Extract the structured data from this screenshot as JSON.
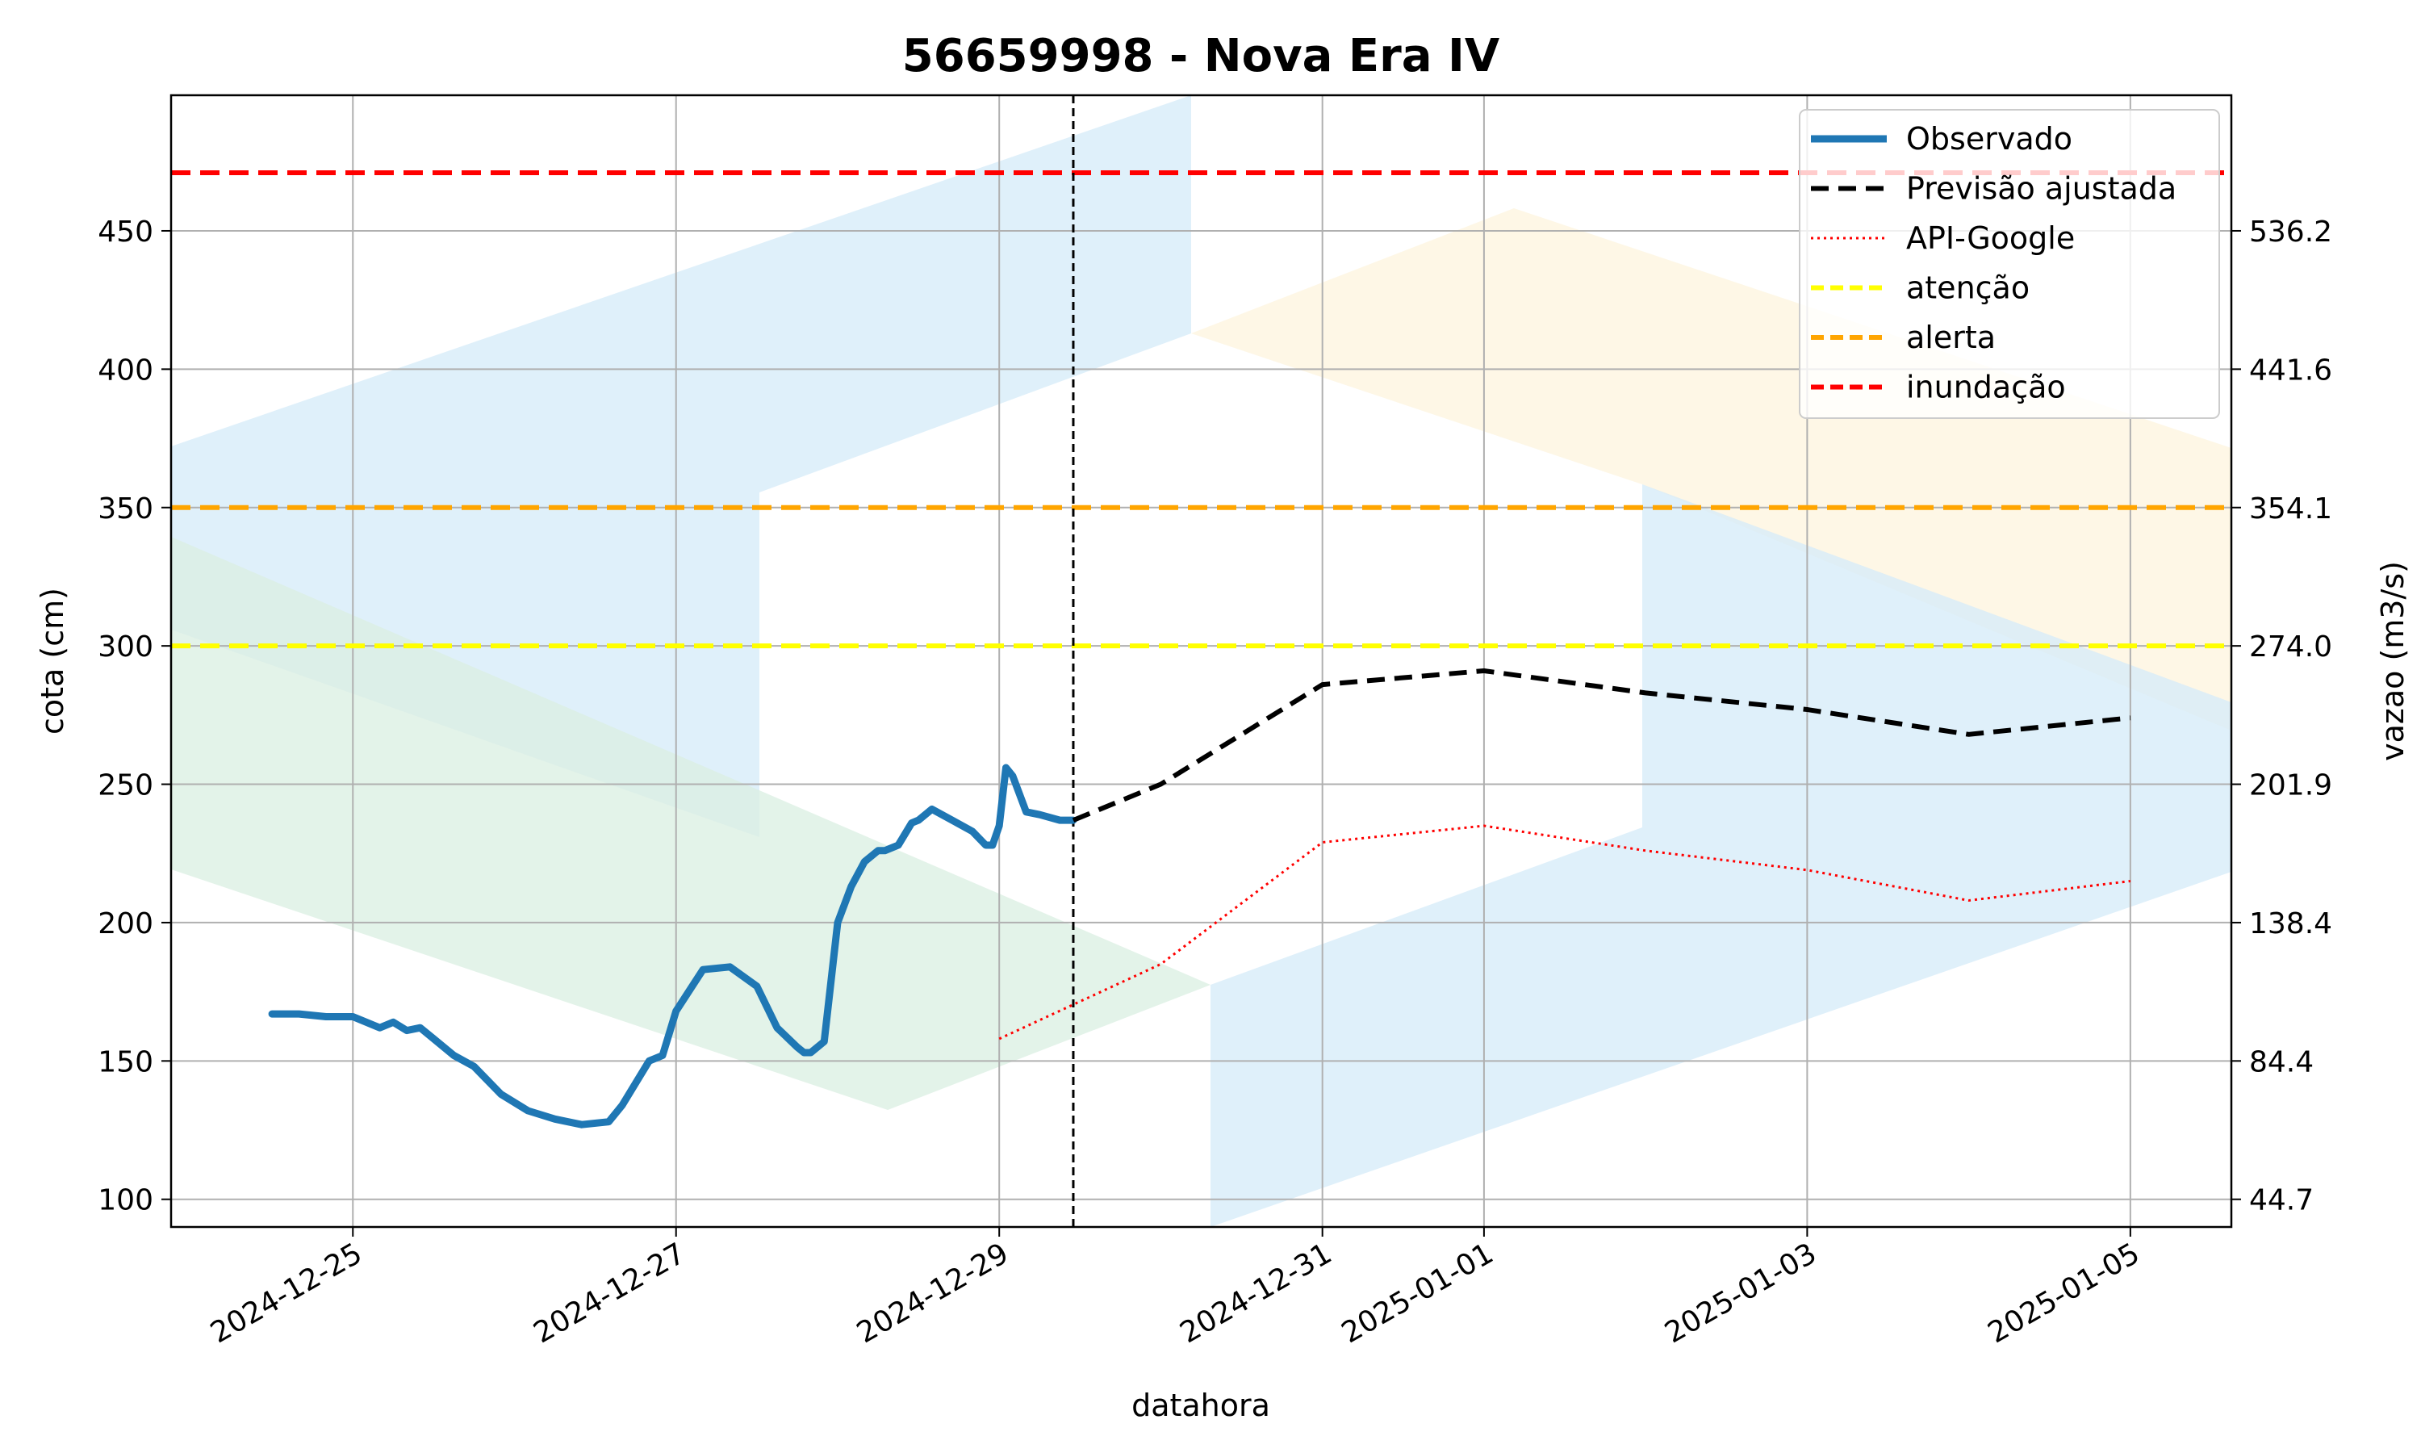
{
  "chart_data": {
    "type": "line",
    "title": "56659998 - Nova Era IV",
    "xlabel": "datahora",
    "ylabel": "cota (cm)",
    "ylabel_right": "vazao (m3/s)",
    "xlim": [
      "2024-12-23T21:00",
      "2025-01-05T15:00"
    ],
    "ylim": [
      90,
      499
    ],
    "x_ticks": [
      "2024-12-25",
      "2024-12-27",
      "2024-12-29",
      "2024-12-31",
      "2025-01-01",
      "2025-01-03",
      "2025-01-05"
    ],
    "y_ticks": [
      100,
      150,
      200,
      250,
      300,
      350,
      400,
      450
    ],
    "y_ticks_right": [
      {
        "cota": 100,
        "label": "44.7"
      },
      {
        "cota": 150,
        "label": "84.4"
      },
      {
        "cota": 200,
        "label": "138.4"
      },
      {
        "cota": 250,
        "label": "201.9"
      },
      {
        "cota": 300,
        "label": "274.0"
      },
      {
        "cota": 350,
        "label": "354.1"
      },
      {
        "cota": 400,
        "label": "441.6"
      },
      {
        "cota": 450,
        "label": "536.2"
      }
    ],
    "grid": true,
    "legend_position": "top-right",
    "forecast_start": "2024-12-29T11:00",
    "series": [
      {
        "name": "Observado",
        "style": "solid-thick",
        "color": "#1f77b4",
        "x": [
          "2024-12-24T12:00",
          "2024-12-24T16:00",
          "2024-12-24T20:00",
          "2024-12-25T00:00",
          "2024-12-25T04:00",
          "2024-12-25T06:00",
          "2024-12-25T08:00",
          "2024-12-25T10:00",
          "2024-12-25T12:00",
          "2024-12-25T15:00",
          "2024-12-25T18:00",
          "2024-12-25T22:00",
          "2024-12-26T02:00",
          "2024-12-26T06:00",
          "2024-12-26T10:00",
          "2024-12-26T14:00",
          "2024-12-26T16:00",
          "2024-12-26T20:00",
          "2024-12-26T22:00",
          "2024-12-27T00:00",
          "2024-12-27T04:00",
          "2024-12-27T08:00",
          "2024-12-27T12:00",
          "2024-12-27T15:00",
          "2024-12-27T18:00",
          "2024-12-27T19:00",
          "2024-12-27T20:00",
          "2024-12-27T22:00",
          "2024-12-28T00:00",
          "2024-12-28T02:00",
          "2024-12-28T04:00",
          "2024-12-28T06:00",
          "2024-12-28T07:00",
          "2024-12-28T09:00",
          "2024-12-28T11:00",
          "2024-12-28T12:00",
          "2024-12-28T14:00",
          "2024-12-28T17:00",
          "2024-12-28T20:00",
          "2024-12-28T22:00",
          "2024-12-28T23:00",
          "2024-12-29T00:00",
          "2024-12-29T01:00",
          "2024-12-29T02:00",
          "2024-12-29T04:00",
          "2024-12-29T06:00",
          "2024-12-29T09:00",
          "2024-12-29T11:00"
        ],
        "values": [
          167,
          167,
          166,
          166,
          162,
          164,
          161,
          162,
          158,
          152,
          148,
          138,
          132,
          129,
          127,
          128,
          134,
          150,
          152,
          168,
          183,
          184,
          177,
          162,
          155,
          153,
          153,
          157,
          200,
          213,
          222,
          226,
          226,
          228,
          236,
          237,
          241,
          237,
          233,
          228,
          228,
          235,
          256,
          253,
          240,
          239,
          237,
          237
        ]
      },
      {
        "name": "Previsão ajustada",
        "style": "dashed",
        "color": "#000000",
        "x": [
          "2024-12-29T11:00",
          "2024-12-30T00:00",
          "2024-12-31T00:00",
          "2025-01-01T00:00",
          "2025-01-02T00:00",
          "2025-01-03T00:00",
          "2025-01-04T00:00",
          "2025-01-05T00:00"
        ],
        "values": [
          237,
          250,
          286,
          291,
          283,
          277,
          268,
          274
        ]
      },
      {
        "name": "API-Google",
        "style": "dotted",
        "color": "#ff0000",
        "x": [
          "2024-12-29T00:00",
          "2024-12-30T00:00",
          "2024-12-31T00:00",
          "2025-01-01T00:00",
          "2025-01-02T00:00",
          "2025-01-03T00:00",
          "2025-01-04T00:00",
          "2025-01-05T00:00"
        ],
        "values": [
          158,
          185,
          229,
          235,
          226,
          219,
          208,
          215
        ]
      }
    ],
    "thresholds": [
      {
        "name": "atenção",
        "value": 300,
        "color": "#ffff00"
      },
      {
        "name": "alerta",
        "value": 350,
        "color": "#ffa500"
      },
      {
        "name": "inundação",
        "value": 471,
        "color": "#ff0000"
      }
    ]
  }
}
